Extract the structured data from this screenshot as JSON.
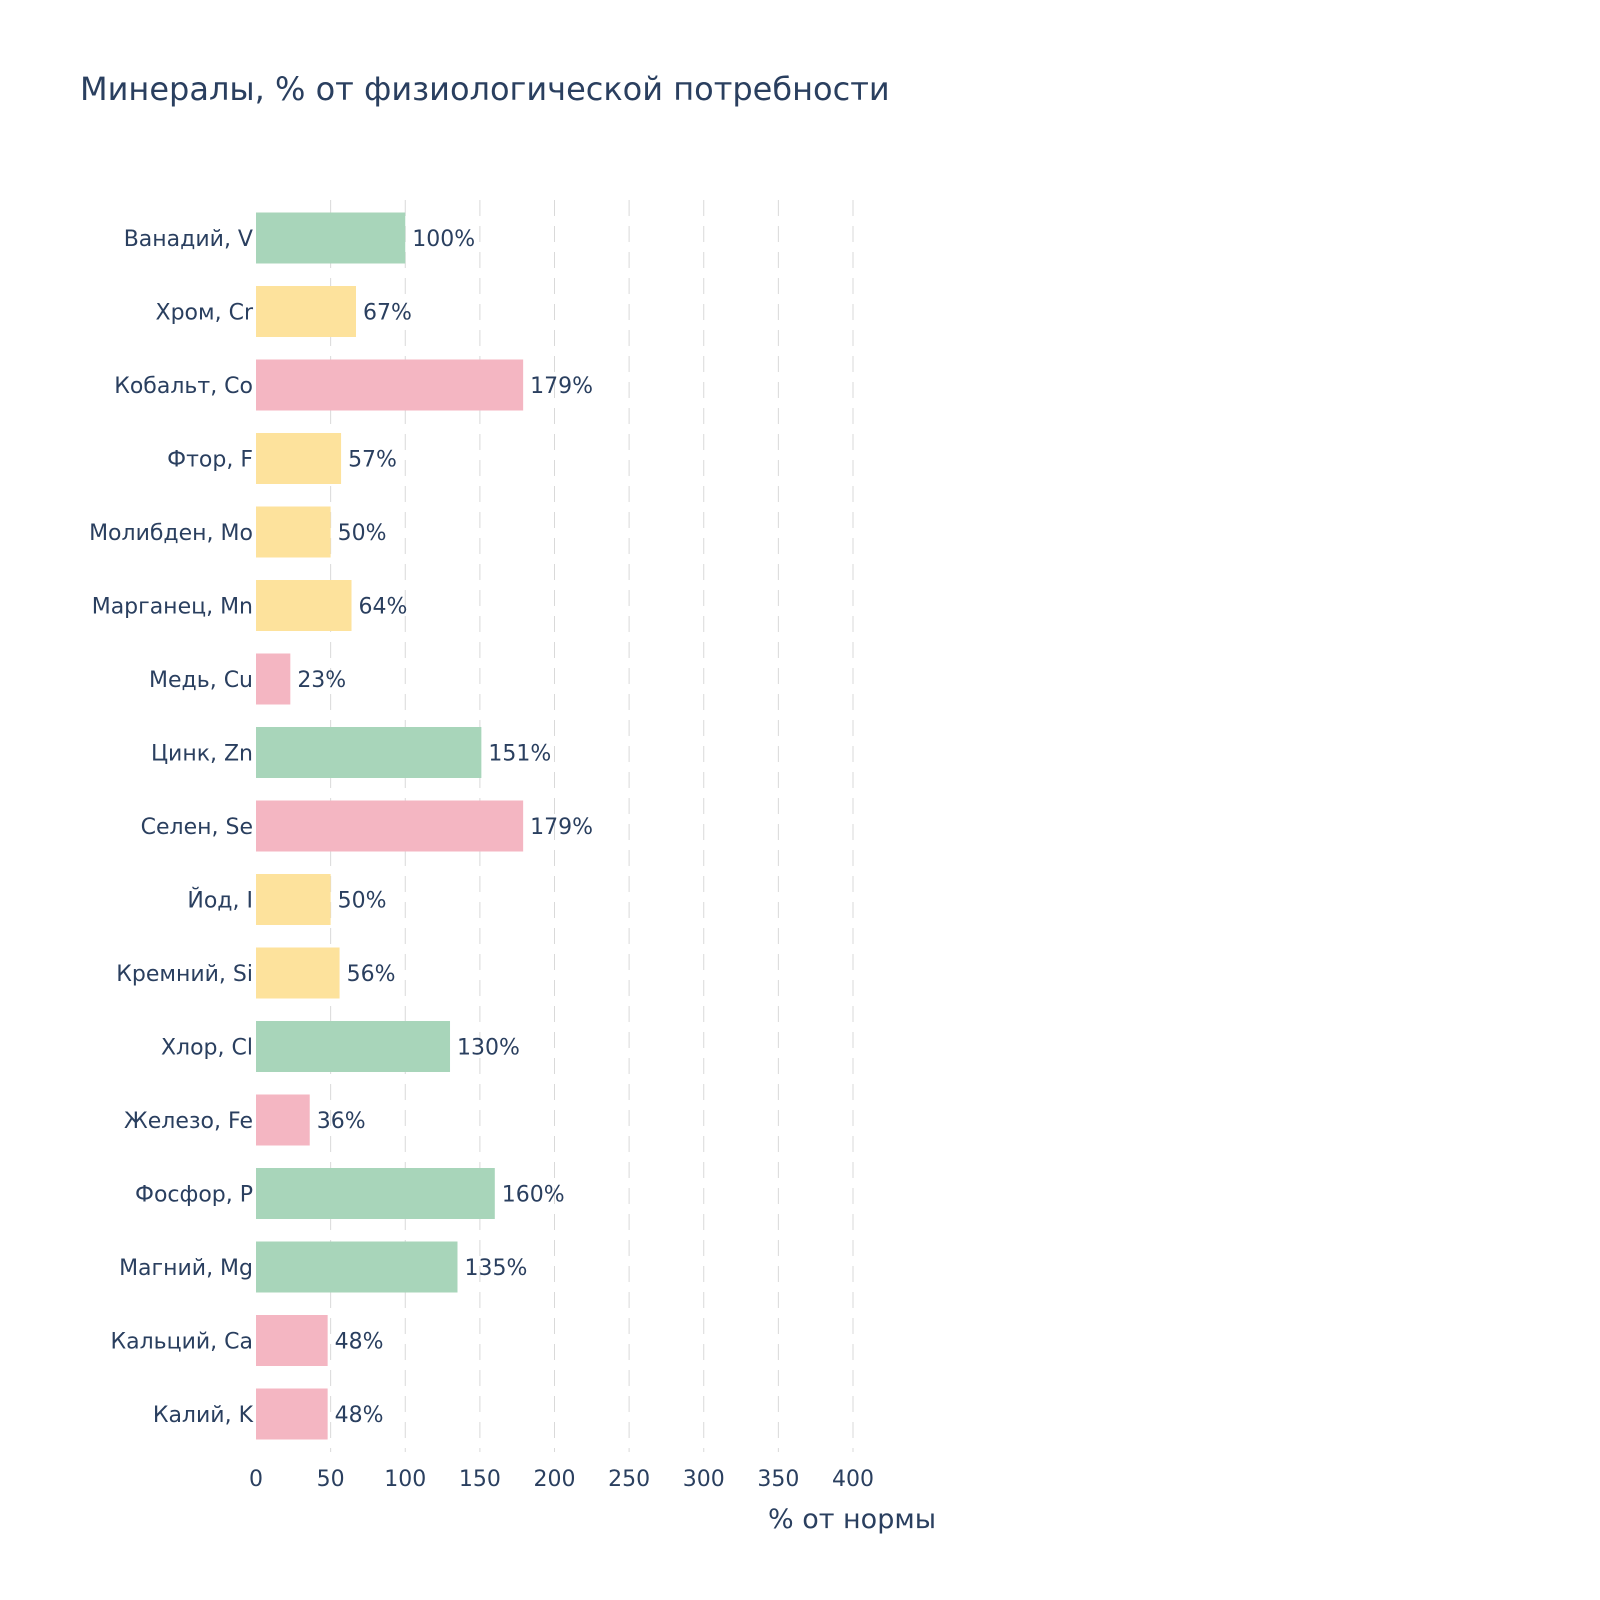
{
  "chart_data": {
    "type": "bar",
    "orientation": "horizontal",
    "title": "Минералы, % от физиологической потребности",
    "xlabel": "% от нормы",
    "ylabel": "",
    "xlim": [
      0,
      430
    ],
    "xticks": [
      0,
      50,
      100,
      150,
      200,
      250,
      300,
      350,
      400
    ],
    "grid": "vertical dashed",
    "categories": [
      "Ванадий, V",
      "Хром, Cr",
      "Кобальт, Co",
      "Фтор, F",
      "Молибден, Mo",
      "Марганец, Mn",
      "Медь, Cu",
      "Цинк, Zn",
      "Селен, Se",
      "Йод, I",
      "Кремний, Si",
      "Хлор, Cl",
      "Железо, Fe",
      "Фосфор, P",
      "Магний, Mg",
      "Кальций, Ca",
      "Калий, K"
    ],
    "values": [
      100,
      67,
      179,
      57,
      50,
      64,
      23,
      151,
      179,
      50,
      56,
      130,
      36,
      160,
      135,
      48,
      48
    ],
    "value_labels": [
      "100%",
      "67%",
      "179%",
      "57%",
      "50%",
      "64%",
      "23%",
      "151%",
      "179%",
      "50%",
      "56%",
      "130%",
      "36%",
      "160%",
      "135%",
      "48%",
      "48%"
    ],
    "colors": [
      "#a8d5ba",
      "#fde29c",
      "#f4b6c2",
      "#fde29c",
      "#fde29c",
      "#fde29c",
      "#f4b6c2",
      "#a8d5ba",
      "#f4b6c2",
      "#fde29c",
      "#fde29c",
      "#a8d5ba",
      "#f4b6c2",
      "#a8d5ba",
      "#a8d5ba",
      "#f4b6c2",
      "#f4b6c2"
    ]
  }
}
